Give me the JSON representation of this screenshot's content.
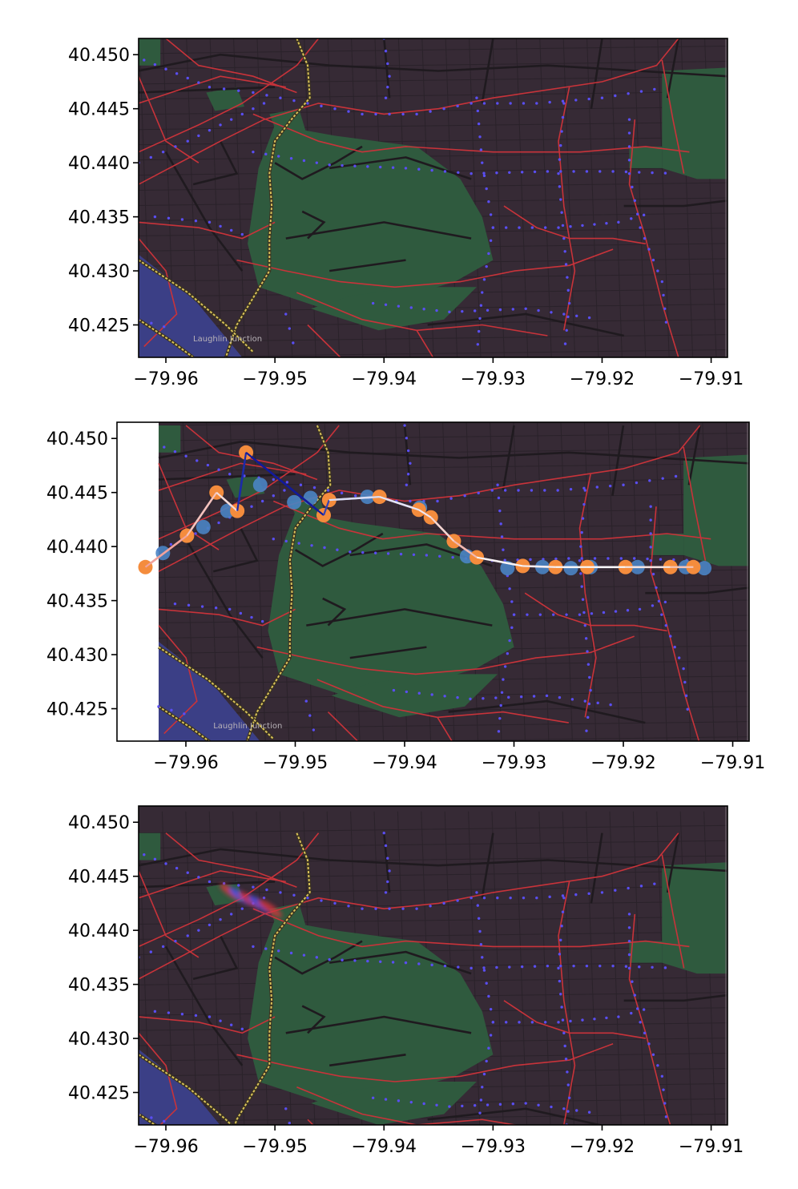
{
  "map_label": "Laughlin Junction",
  "colors": {
    "land": "#362a35",
    "park": "#2f5a3e",
    "river": "#3b3f86",
    "major_road": "#c8333a",
    "minor_road": "#1f1a1f",
    "bus_stop": "#5a4ef2",
    "rail": "#d9c25a",
    "observed": "#4a84c4",
    "estimated": "#f48c3d"
  },
  "chart_data": [
    {
      "type": "map",
      "panel": "top",
      "xlim": [
        -79.9625,
        -79.9085
      ],
      "ylim": [
        40.422,
        40.4515
      ],
      "x_ticks": [
        -79.96,
        -79.95,
        -79.94,
        -79.93,
        -79.92,
        -79.91
      ],
      "y_ticks": [
        40.425,
        40.43,
        40.435,
        40.44,
        40.445,
        40.45
      ],
      "x_tick_labels": [
        "−79.96",
        "−79.95",
        "−79.94",
        "−79.93",
        "−79.92",
        "−79.91"
      ],
      "y_tick_labels": [
        "40.425",
        "40.430",
        "40.435",
        "40.440",
        "40.445",
        "40.450"
      ],
      "basemap_shift": 0
    },
    {
      "type": "scatter",
      "panel": "middle",
      "xlim": [
        -79.9663,
        -79.9085
      ],
      "ylim": [
        40.422,
        40.4515
      ],
      "x_ticks": [
        -79.96,
        -79.95,
        -79.94,
        -79.93,
        -79.92,
        -79.91
      ],
      "y_ticks": [
        40.425,
        40.43,
        40.435,
        40.44,
        40.445,
        40.45
      ],
      "x_tick_labels": [
        "−79.96",
        "−79.95",
        "−79.94",
        "−79.93",
        "−79.92",
        "−79.91"
      ],
      "y_tick_labels": [
        "40.425",
        "40.430",
        "40.435",
        "40.440",
        "40.445",
        "40.450"
      ],
      "basemap_shift": 0.0003,
      "observed_points": [
        [
          -79.9621,
          40.4394
        ],
        [
          -79.9584,
          40.4418
        ],
        [
          -79.9562,
          40.4433
        ],
        [
          -79.9532,
          40.4457
        ],
        [
          -79.9501,
          40.4441
        ],
        [
          -79.9486,
          40.4445
        ],
        [
          -79.9434,
          40.4446
        ],
        [
          -79.9386,
          40.4436
        ],
        [
          -79.9343,
          40.4391
        ],
        [
          -79.9306,
          40.438
        ],
        [
          -79.9274,
          40.4381
        ],
        [
          -79.9248,
          40.438
        ],
        [
          -79.923,
          40.4381
        ],
        [
          -79.9187,
          40.4381
        ],
        [
          -79.9143,
          40.4381
        ],
        [
          -79.9126,
          40.438
        ]
      ],
      "estimated_points": [
        [
          -79.9637,
          40.4381
        ],
        [
          -79.9599,
          40.441
        ],
        [
          -79.9572,
          40.445
        ],
        [
          -79.9553,
          40.4433
        ],
        [
          -79.9545,
          40.4487
        ],
        [
          -79.9474,
          40.4429
        ],
        [
          -79.9469,
          40.4443
        ],
        [
          -79.9423,
          40.4446
        ],
        [
          -79.9387,
          40.4434
        ],
        [
          -79.9376,
          40.4427
        ],
        [
          -79.9355,
          40.4405
        ],
        [
          -79.9334,
          40.439
        ],
        [
          -79.9292,
          40.4382
        ],
        [
          -79.9262,
          40.4381
        ],
        [
          -79.9233,
          40.4381
        ],
        [
          -79.9198,
          40.4381
        ],
        [
          -79.9157,
          40.4381
        ],
        [
          -79.9136,
          40.4381
        ]
      ],
      "path_segments": [
        {
          "from": [
            -79.9637,
            40.4381
          ],
          "to": [
            -79.9599,
            40.441
          ],
          "color": "#f0a29c"
        },
        {
          "from": [
            -79.9599,
            40.441
          ],
          "to": [
            -79.9572,
            40.445
          ],
          "color": "#f4c2bd"
        },
        {
          "from": [
            -79.9572,
            40.445
          ],
          "to": [
            -79.9553,
            40.4433
          ],
          "color": "#f5dbd8"
        },
        {
          "from": [
            -79.9553,
            40.4433
          ],
          "to": [
            -79.9545,
            40.4487
          ],
          "color": "#1c2aa8"
        },
        {
          "from": [
            -79.9545,
            40.4487
          ],
          "to": [
            -79.9474,
            40.4429
          ],
          "color": "#121a99"
        },
        {
          "from": [
            -79.9474,
            40.4429
          ],
          "to": [
            -79.9469,
            40.4443
          ],
          "color": "#3342b5"
        },
        {
          "from": [
            -79.9469,
            40.4443
          ],
          "to": [
            -79.9423,
            40.4446
          ],
          "color": "#d9dcf4"
        },
        {
          "from": [
            -79.9423,
            40.4446
          ],
          "to": [
            -79.9387,
            40.4434
          ],
          "color": "#e5e4f6"
        },
        {
          "from": [
            -79.9387,
            40.4434
          ],
          "to": [
            -79.9376,
            40.4427
          ],
          "color": "#f0e6ee"
        },
        {
          "from": [
            -79.9376,
            40.4427
          ],
          "to": [
            -79.9355,
            40.4405
          ],
          "color": "#f4d6d3"
        },
        {
          "from": [
            -79.9355,
            40.4405
          ],
          "to": [
            -79.9334,
            40.439
          ],
          "color": "#f2b9b2"
        },
        {
          "from": [
            -79.9334,
            40.439
          ],
          "to": [
            -79.9292,
            40.4382
          ],
          "color": "#f7f2f4"
        },
        {
          "from": [
            -79.9292,
            40.4382
          ],
          "to": [
            -79.9262,
            40.4381
          ],
          "color": "#f5eef2"
        },
        {
          "from": [
            -79.9262,
            40.4381
          ],
          "to": [
            -79.9233,
            40.4381
          ],
          "color": "#f7f6f8"
        },
        {
          "from": [
            -79.9233,
            40.4381
          ],
          "to": [
            -79.9198,
            40.4381
          ],
          "color": "#f8f7f9"
        },
        {
          "from": [
            -79.9198,
            40.4381
          ],
          "to": [
            -79.9157,
            40.4381
          ],
          "color": "#f3e4e2"
        },
        {
          "from": [
            -79.9157,
            40.4381
          ],
          "to": [
            -79.9136,
            40.4381
          ],
          "color": "#f4c4b7"
        }
      ]
    },
    {
      "type": "map",
      "panel": "bottom",
      "xlim": [
        -79.9625,
        -79.9085
      ],
      "ylim": [
        40.422,
        40.4515
      ],
      "x_ticks": [
        -79.96,
        -79.95,
        -79.94,
        -79.93,
        -79.92,
        -79.91
      ],
      "y_ticks": [
        40.425,
        40.43,
        40.435,
        40.44,
        40.445,
        40.45
      ],
      "x_tick_labels": [
        "−79.96",
        "−79.95",
        "−79.94",
        "−79.93",
        "−79.92",
        "−79.91"
      ],
      "y_tick_labels": [
        "40.425",
        "40.430",
        "40.435",
        "40.440",
        "40.445",
        "40.450"
      ],
      "basemap_shift": 0.0025,
      "distortion_note_free": true
    }
  ]
}
